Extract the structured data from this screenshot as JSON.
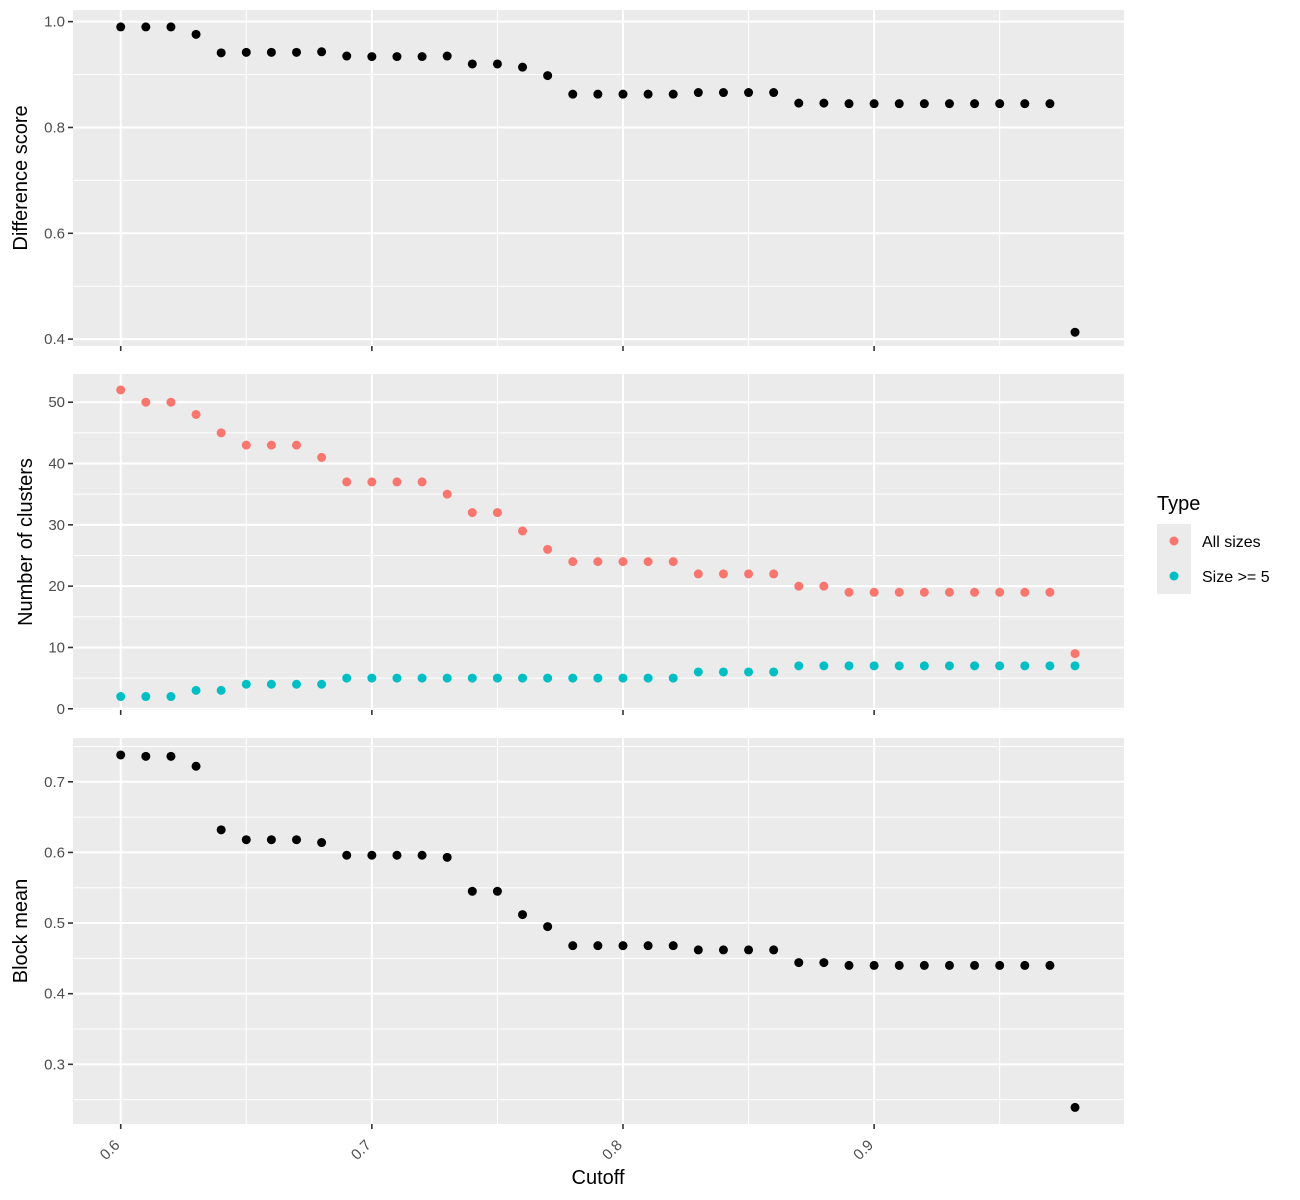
{
  "chart_data": [
    {
      "type": "scatter",
      "panel": "top",
      "ylabel": "Difference score",
      "xlabel": "",
      "xlim": [
        0.581,
        0.9995
      ],
      "ylim": [
        0.387,
        1.022
      ],
      "xticks": [
        "0.6",
        "0.7",
        "0.8",
        "0.9"
      ],
      "yticks": [
        "0.4",
        "0.6",
        "0.8",
        "1.0"
      ],
      "grid": true,
      "color": "#000000",
      "x": [
        0.6,
        0.61,
        0.62,
        0.63,
        0.64,
        0.65,
        0.66,
        0.67,
        0.68,
        0.69,
        0.7,
        0.71,
        0.72,
        0.73,
        0.74,
        0.75,
        0.76,
        0.77,
        0.78,
        0.79,
        0.8,
        0.81,
        0.82,
        0.83,
        0.84,
        0.85,
        0.86,
        0.87,
        0.88,
        0.89,
        0.9,
        0.91,
        0.92,
        0.93,
        0.94,
        0.95,
        0.96,
        0.97,
        0.98
      ],
      "y": [
        0.99,
        0.99,
        0.99,
        0.976,
        0.941,
        0.942,
        0.942,
        0.942,
        0.943,
        0.935,
        0.934,
        0.934,
        0.934,
        0.935,
        0.92,
        0.92,
        0.914,
        0.898,
        0.863,
        0.863,
        0.863,
        0.863,
        0.863,
        0.866,
        0.866,
        0.866,
        0.866,
        0.846,
        0.846,
        0.845,
        0.845,
        0.845,
        0.845,
        0.845,
        0.845,
        0.845,
        0.845,
        0.845,
        0.413
      ]
    },
    {
      "type": "scatter",
      "panel": "middle",
      "ylabel": "Number of clusters",
      "xlabel": "",
      "xlim": [
        0.581,
        0.9995
      ],
      "ylim": [
        -0.2,
        54.6
      ],
      "xticks": [
        "0.6",
        "0.7",
        "0.8",
        "0.9"
      ],
      "yticks": [
        "0",
        "10",
        "20",
        "30",
        "40",
        "50"
      ],
      "grid": true,
      "x": [
        0.6,
        0.61,
        0.62,
        0.63,
        0.64,
        0.65,
        0.66,
        0.67,
        0.68,
        0.69,
        0.7,
        0.71,
        0.72,
        0.73,
        0.74,
        0.75,
        0.76,
        0.77,
        0.78,
        0.79,
        0.8,
        0.81,
        0.82,
        0.83,
        0.84,
        0.85,
        0.86,
        0.87,
        0.88,
        0.89,
        0.9,
        0.91,
        0.92,
        0.93,
        0.94,
        0.95,
        0.96,
        0.97,
        0.98
      ],
      "series": [
        {
          "name": "All sizes",
          "color": "#F8766D",
          "values": [
            52,
            50,
            50,
            48,
            45,
            43,
            43,
            43,
            41,
            37,
            37,
            37,
            37,
            35,
            32,
            32,
            29,
            26,
            24,
            24,
            24,
            24,
            24,
            22,
            22,
            22,
            22,
            20,
            20,
            19,
            19,
            19,
            19,
            19,
            19,
            19,
            19,
            19,
            9
          ]
        },
        {
          "name": "Size >= 5",
          "color": "#00BFC4",
          "values": [
            2,
            2,
            2,
            3,
            3,
            4,
            4,
            4,
            4,
            5,
            5,
            5,
            5,
            5,
            5,
            5,
            5,
            5,
            5,
            5,
            5,
            5,
            5,
            6,
            6,
            6,
            6,
            7,
            7,
            7,
            7,
            7,
            7,
            7,
            7,
            7,
            7,
            7,
            7
          ]
        }
      ],
      "legend": {
        "title": "Type",
        "position": "right"
      }
    },
    {
      "type": "scatter",
      "panel": "bottom",
      "ylabel": "Block mean",
      "xlabel": "Cutoff",
      "xlim": [
        0.581,
        0.9995
      ],
      "ylim": [
        0.2155,
        0.762
      ],
      "xticks": [
        "0.6",
        "0.7",
        "0.8",
        "0.9"
      ],
      "yticks": [
        "0.3",
        "0.4",
        "0.5",
        "0.6",
        "0.7"
      ],
      "grid": true,
      "color": "#000000",
      "x": [
        0.6,
        0.61,
        0.62,
        0.63,
        0.64,
        0.65,
        0.66,
        0.67,
        0.68,
        0.69,
        0.7,
        0.71,
        0.72,
        0.73,
        0.74,
        0.75,
        0.76,
        0.77,
        0.78,
        0.79,
        0.8,
        0.81,
        0.82,
        0.83,
        0.84,
        0.85,
        0.86,
        0.87,
        0.88,
        0.89,
        0.9,
        0.91,
        0.92,
        0.93,
        0.94,
        0.95,
        0.96,
        0.97,
        0.98
      ],
      "y": [
        0.738,
        0.736,
        0.736,
        0.722,
        0.632,
        0.618,
        0.618,
        0.618,
        0.614,
        0.596,
        0.596,
        0.596,
        0.596,
        0.593,
        0.545,
        0.545,
        0.512,
        0.495,
        0.468,
        0.468,
        0.468,
        0.468,
        0.468,
        0.462,
        0.462,
        0.462,
        0.462,
        0.444,
        0.444,
        0.44,
        0.44,
        0.44,
        0.44,
        0.44,
        0.44,
        0.44,
        0.44,
        0.44,
        0.239
      ]
    }
  ]
}
